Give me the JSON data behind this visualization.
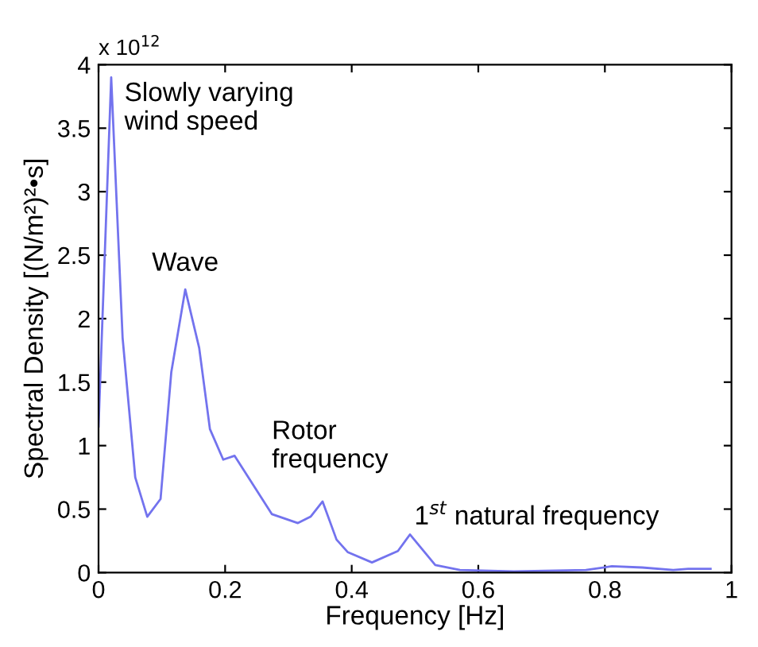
{
  "chart_data": {
    "type": "line",
    "xlabel": "Frequency [Hz]",
    "ylabel": "Spectral Density [(N/m²)²•s]",
    "x": [
      0,
      0.02,
      0.038,
      0.058,
      0.077,
      0.098,
      0.115,
      0.137,
      0.159,
      0.176,
      0.197,
      0.215,
      0.274,
      0.315,
      0.335,
      0.354,
      0.376,
      0.394,
      0.432,
      0.473,
      0.492,
      0.532,
      0.571,
      0.656,
      0.77,
      0.811,
      0.859,
      0.908,
      0.932,
      0.967
    ],
    "series": [
      {
        "color": "#7373ee",
        "values": [
          1.15,
          3.9,
          1.85,
          0.75,
          0.44,
          0.58,
          1.58,
          2.23,
          1.77,
          1.13,
          0.89,
          0.92,
          0.46,
          0.39,
          0.44,
          0.56,
          0.26,
          0.16,
          0.08,
          0.17,
          0.3,
          0.06,
          0.02,
          0.01,
          0.02,
          0.05,
          0.04,
          0.02,
          0.03,
          0.03
        ]
      }
    ],
    "xlim": [
      0,
      1
    ],
    "ylim": [
      0,
      4
    ],
    "xticks": [
      0,
      0.2,
      0.4,
      0.6,
      0.8,
      1
    ],
    "yticks": [
      0,
      0.5,
      1,
      1.5,
      2,
      2.5,
      3,
      3.5,
      4
    ],
    "annotations": [
      "x 10$^{12}$",
      {
        "text": "Slowly varying\nwind speed",
        "x": 0.02,
        "y": 3.9
      },
      {
        "text": "Wave",
        "x": 0.137,
        "y": 2.23
      },
      {
        "text": "Rotor\nfrequency",
        "x": 0.354,
        "y": 0.56
      },
      {
        "text": "1$^{st}$ natural frequency",
        "x": 0.492,
        "y": 0.3
      }
    ],
    "grid": false,
    "legend": false
  }
}
